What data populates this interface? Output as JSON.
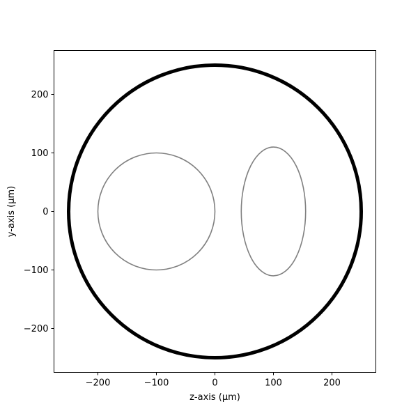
{
  "chart_data": {
    "type": "line",
    "title": "",
    "xlabel": "z-axis (µm)",
    "ylabel": "y-axis (µm)",
    "xlim": [
      -275,
      275
    ],
    "ylim": [
      -275,
      275
    ],
    "xticks": [
      -200,
      -100,
      0,
      100,
      200
    ],
    "yticks": [
      -200,
      -100,
      0,
      100,
      200
    ],
    "grid": false,
    "series": [
      {
        "shape": "circle",
        "center": [
          0,
          0
        ],
        "radius": 250,
        "color": "#000000"
      },
      {
        "shape": "circle",
        "center": [
          -100,
          0
        ],
        "radius": 100,
        "color": "#808080"
      },
      {
        "shape": "ellipse",
        "center": [
          100,
          0
        ],
        "radius_z": 55,
        "radius_y": 110,
        "color": "#808080"
      }
    ]
  }
}
